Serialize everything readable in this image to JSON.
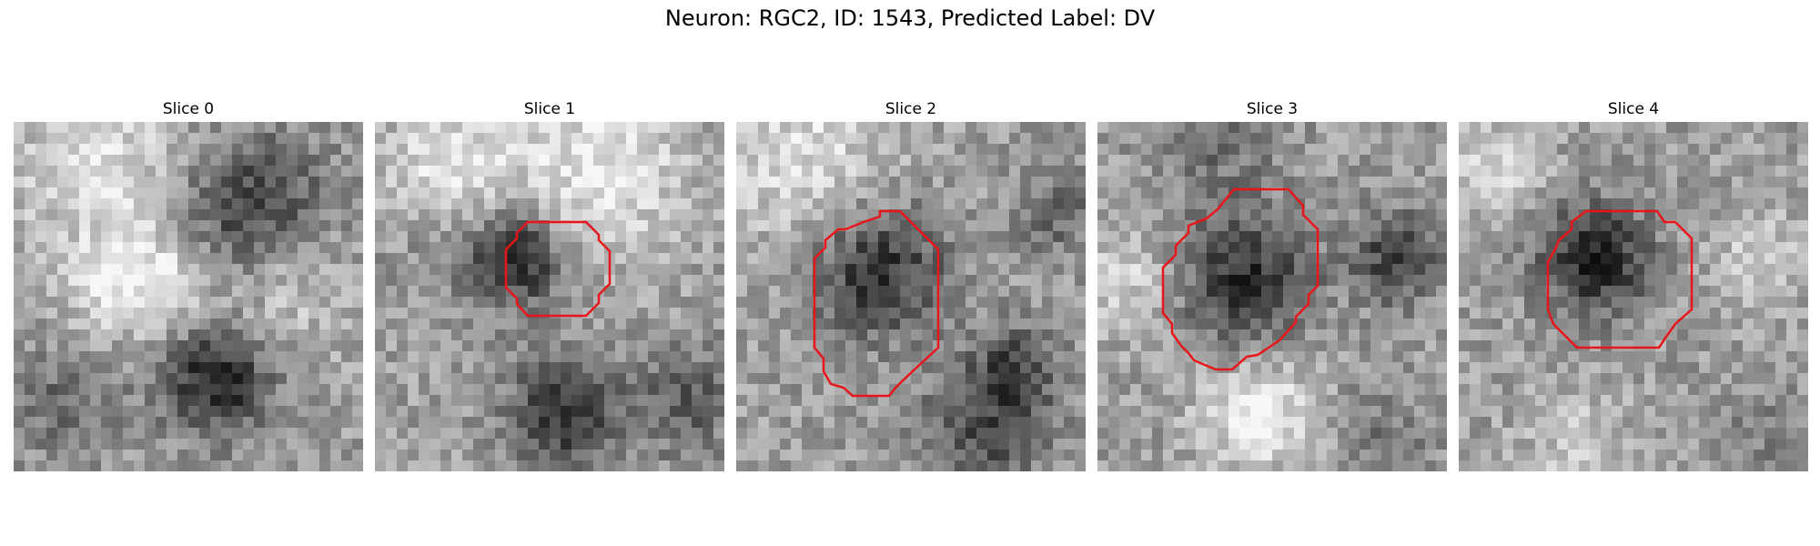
{
  "figure": {
    "suptitle": "Neuron: RGC2, ID: 1543, Predicted Label: DV",
    "contour_color": "#e8161b",
    "colormap": "gray",
    "panels": [
      {
        "title": "Slice 0",
        "has_contour": false
      },
      {
        "title": "Slice 1",
        "has_contour": true
      },
      {
        "title": "Slice 2",
        "has_contour": true
      },
      {
        "title": "Slice 3",
        "has_contour": true
      },
      {
        "title": "Slice 4",
        "has_contour": true
      }
    ]
  }
}
